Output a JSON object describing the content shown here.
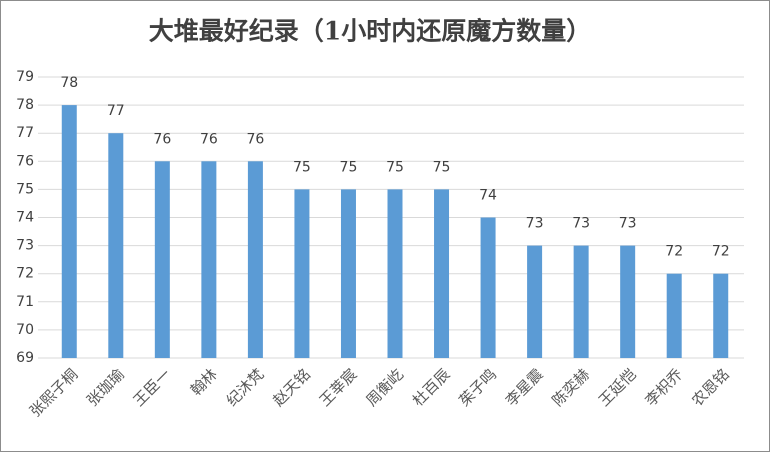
{
  "chart_data": {
    "type": "bar",
    "title": "大堆最好纪录（1小时内还原魔方数量）",
    "categories": [
      "张熙子桐",
      "张珈瑜",
      "王臣一",
      "翰林",
      "纪沐梵",
      "赵天铭",
      "王莘宸",
      "周衡屹",
      "杜百辰",
      "茱子鸣",
      "李星震",
      "陈奕赫",
      "王延恺",
      "李枳乔",
      "农恩铭"
    ],
    "values": [
      78,
      77,
      76,
      76,
      76,
      75,
      75,
      75,
      75,
      74,
      73,
      73,
      73,
      72,
      72
    ],
    "color": "#5b9bd5",
    "ylim": [
      69,
      79
    ],
    "yticks": [
      69,
      70,
      71,
      72,
      73,
      74,
      75,
      76,
      77,
      78,
      79
    ],
    "grid": true
  }
}
